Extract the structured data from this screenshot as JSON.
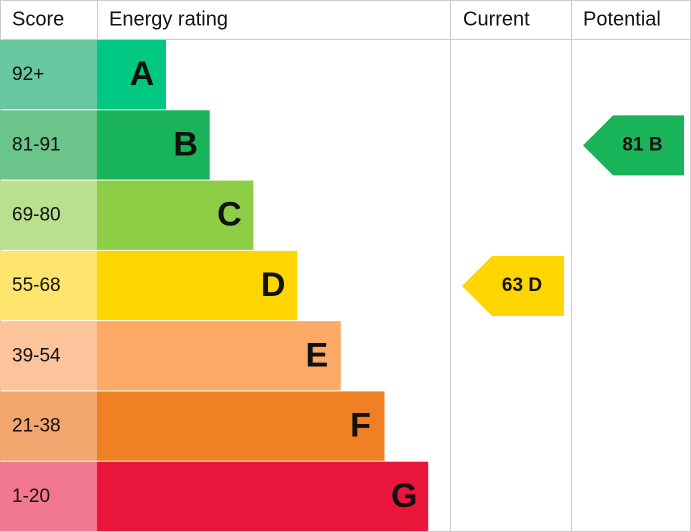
{
  "header": {
    "score": "Score",
    "rating": "Energy rating",
    "current": "Current",
    "potential": "Potential"
  },
  "bands": [
    {
      "score": "92+",
      "letter": "A",
      "color": "#00c781",
      "score_color": "#66c7a0"
    },
    {
      "score": "81-91",
      "letter": "B",
      "color": "#19b459",
      "score_color": "#6bc48a"
    },
    {
      "score": "69-80",
      "letter": "C",
      "color": "#8dce46",
      "score_color": "#b9e08e"
    },
    {
      "score": "55-68",
      "letter": "D",
      "color": "#ffd500",
      "score_color": "#ffe46e"
    },
    {
      "score": "39-54",
      "letter": "E",
      "color": "#fcaa65",
      "score_color": "#fdc39b"
    },
    {
      "score": "21-38",
      "letter": "F",
      "color": "#ef8023",
      "score_color": "#f4a66f"
    },
    {
      "score": "1-20",
      "letter": "G",
      "color": "#e9153b",
      "score_color": "#f27790"
    }
  ],
  "current": {
    "label": "63 D"
  },
  "potential": {
    "label": "81 B"
  }
}
